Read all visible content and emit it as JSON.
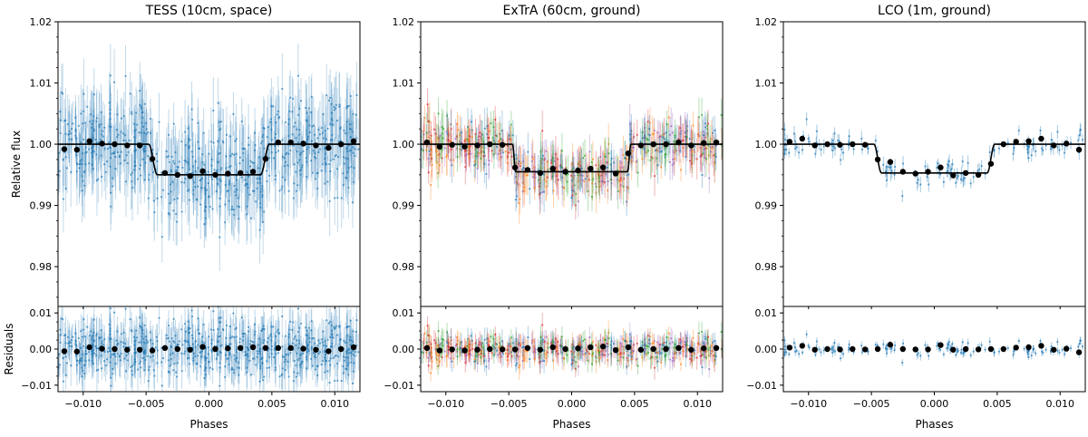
{
  "chart_data": [
    {
      "type": "scatter",
      "title": "TESS (10cm, space)",
      "xlabel": "Phases",
      "ylabel": "Relative flux",
      "residual_ylabel": "Residuals",
      "xlim": [
        -0.012,
        0.012
      ],
      "ylim": [
        0.9735,
        1.02
      ],
      "residual_ylim": [
        -0.0118,
        0.0118
      ],
      "xticks": [
        -0.01,
        -0.005,
        0.0,
        0.005,
        0.01
      ],
      "xtick_labels": [
        "−0.010",
        "−0.005",
        "0.000",
        "0.005",
        "0.010"
      ],
      "yticks": [
        0.98,
        0.99,
        1.0,
        1.01,
        1.02
      ],
      "ytick_labels": [
        "0.98",
        "0.99",
        "1.00",
        "1.01",
        "1.02"
      ],
      "residual_yticks": [
        -0.01,
        0.0,
        0.01
      ],
      "residual_ytick_labels": [
        "−0.01",
        "0.00",
        "0.01"
      ],
      "model": {
        "depth": 0.005,
        "t14_half": 0.0048,
        "ingress": 0.0007,
        "color": "#000000"
      },
      "raw_data": {
        "color": "#1f77b4",
        "series_colors": [
          "#1f77b4"
        ],
        "scatter": 0.0042,
        "error": 0.0045,
        "approx_points": 700
      },
      "binned": {
        "x": [
          -0.0115,
          -0.0105,
          -0.0095,
          -0.0085,
          -0.0075,
          -0.0065,
          -0.0055,
          -0.0045,
          -0.0035,
          -0.0025,
          -0.0015,
          -0.0005,
          0.0005,
          0.0015,
          0.0025,
          0.0035,
          0.0045,
          0.0055,
          0.0065,
          0.0075,
          0.0085,
          0.0095,
          0.0105,
          0.0115
        ],
        "y": [
          0.9992,
          0.9991,
          1.0005,
          1.0001,
          1.0,
          0.9998,
          0.9998,
          0.9976,
          0.9953,
          0.995,
          0.9948,
          0.9956,
          0.995,
          0.9952,
          0.9953,
          0.9955,
          0.9976,
          1.0003,
          1.0003,
          1.0001,
          0.9998,
          0.9994,
          1.0,
          1.0005
        ],
        "residuals": [
          -0.0006,
          -0.0007,
          0.0005,
          0.0001,
          0.0,
          -0.0002,
          -0.0002,
          -0.0004,
          0.0003,
          0.0,
          -0.0002,
          0.0006,
          0.0,
          0.0002,
          0.0003,
          0.0005,
          0.0003,
          0.0003,
          0.0003,
          0.0001,
          -0.0002,
          -0.0006,
          0.0,
          0.0005
        ]
      }
    },
    {
      "type": "scatter",
      "title": "ExTrA (60cm, ground)",
      "xlabel": "Phases",
      "ylabel": "",
      "residual_ylabel": "",
      "xlim": [
        -0.012,
        0.012
      ],
      "ylim": [
        0.9735,
        1.02
      ],
      "residual_ylim": [
        -0.0118,
        0.0118
      ],
      "xticks": [
        -0.01,
        -0.005,
        0.0,
        0.005,
        0.01
      ],
      "xtick_labels": [
        "−0.010",
        "−0.005",
        "0.000",
        "0.005",
        "0.010"
      ],
      "yticks": [
        0.98,
        0.99,
        1.0,
        1.01,
        1.02
      ],
      "ytick_labels": [
        "0.98",
        "0.99",
        "1.00",
        "1.01",
        "1.02"
      ],
      "residual_yticks": [
        -0.01,
        0.0,
        0.01
      ],
      "residual_ytick_labels": [
        "−0.01",
        "0.00",
        "0.01"
      ],
      "model": {
        "depth": 0.0045,
        "t14_half": 0.0047,
        "ingress": 0.00025,
        "color": "#000000"
      },
      "raw_data": {
        "color": "#1f77b4",
        "series_colors": [
          "#1f77b4",
          "#ff7f0e",
          "#2ca02c",
          "#d62728",
          "#9467bd"
        ],
        "scatter": 0.002,
        "error": 0.0026,
        "approx_points": 600
      },
      "binned": {
        "x": [
          -0.0115,
          -0.0105,
          -0.0095,
          -0.0085,
          -0.0075,
          -0.0065,
          -0.0055,
          -0.0045,
          -0.0035,
          -0.0025,
          -0.0015,
          -0.0005,
          0.0005,
          0.0015,
          0.0025,
          0.0035,
          0.0045,
          0.0055,
          0.0065,
          0.0075,
          0.0085,
          0.0095,
          0.0105,
          0.0115
        ],
        "y": [
          1.0003,
          0.9996,
          0.9999,
          0.9996,
          0.9998,
          1.0,
          0.9999,
          0.9962,
          0.9958,
          0.9953,
          0.996,
          0.9955,
          0.9957,
          0.996,
          0.9962,
          0.9952,
          0.9985,
          0.9998,
          1.0,
          1.0,
          1.0003,
          0.9998,
          1.0002,
          1.0003
        ],
        "residuals": [
          0.0003,
          -0.0004,
          -0.0001,
          -0.0004,
          -0.0002,
          0.0,
          -0.0001,
          -0.0001,
          0.0003,
          -0.0002,
          0.0005,
          0.0,
          0.0002,
          0.0005,
          0.0007,
          -0.0003,
          0.0005,
          -0.0002,
          0.0,
          0.0,
          0.0003,
          -0.0002,
          0.0002,
          0.0003
        ]
      }
    },
    {
      "type": "scatter",
      "title": "LCO (1m, ground)",
      "xlabel": "Phases",
      "ylabel": "",
      "residual_ylabel": "",
      "xlim": [
        -0.012,
        0.012
      ],
      "ylim": [
        0.9735,
        1.02
      ],
      "residual_ylim": [
        -0.0118,
        0.0118
      ],
      "xticks": [
        -0.01,
        -0.005,
        0.0,
        0.005,
        0.01
      ],
      "xtick_labels": [
        "−0.010",
        "−0.005",
        "0.000",
        "0.005",
        "0.010"
      ],
      "yticks": [
        0.98,
        0.99,
        1.0,
        1.01,
        1.02
      ],
      "ytick_labels": [
        "0.98",
        "0.99",
        "1.00",
        "1.01",
        "1.02"
      ],
      "residual_yticks": [
        -0.01,
        0.0,
        0.01
      ],
      "residual_ytick_labels": [
        "−0.01",
        "0.00",
        "0.01"
      ],
      "model": {
        "depth": 0.0047,
        "t14_half": 0.0048,
        "ingress": 0.0006,
        "color": "#000000"
      },
      "raw_data": {
        "color": "#1f77b4",
        "series_colors": [
          "#1f77b4"
        ],
        "scatter": 0.0012,
        "error": 0.001,
        "approx_points": 150
      },
      "binned": {
        "x": [
          -0.0115,
          -0.0105,
          -0.0095,
          -0.0085,
          -0.0075,
          -0.0065,
          -0.0055,
          -0.0045,
          -0.0035,
          -0.0025,
          -0.0015,
          -0.0005,
          0.0005,
          0.0015,
          0.0025,
          0.0035,
          0.0045,
          0.0055,
          0.0065,
          0.0075,
          0.0085,
          0.0095,
          0.0105,
          0.0115
        ],
        "y": [
          1.0004,
          1.0009,
          0.9998,
          1.0,
          0.9999,
          1.0,
          0.9999,
          0.9975,
          0.9971,
          0.9955,
          0.9952,
          0.9955,
          0.9962,
          0.9949,
          0.9953,
          0.995,
          0.9968,
          1.0,
          1.0004,
          1.0005,
          1.0009,
          0.9998,
          1.0001,
          0.9991
        ],
        "residuals": [
          0.0004,
          0.0009,
          -0.0002,
          0.0,
          -0.0001,
          0.0,
          -0.0001,
          0.0,
          0.0012,
          0.0,
          -0.0001,
          -0.0001,
          0.0011,
          -0.0002,
          0.0,
          -0.0001,
          0.0,
          0.0,
          0.0004,
          0.0005,
          0.0009,
          -0.0002,
          0.0001,
          -0.0009
        ]
      }
    }
  ]
}
